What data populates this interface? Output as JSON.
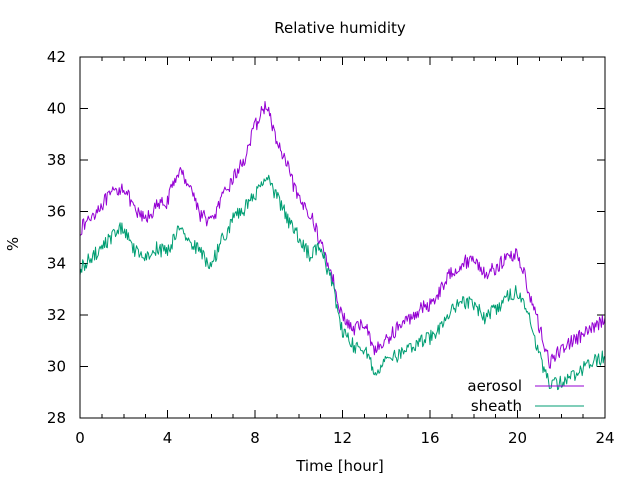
{
  "chart_data": {
    "type": "line",
    "title": "Relative humidity",
    "xlabel": "Time [hour]",
    "ylabel": "%",
    "xlim": [
      0,
      24
    ],
    "ylim": [
      28,
      42
    ],
    "xticks": [
      0,
      4,
      8,
      12,
      16,
      20,
      24
    ],
    "yticks": [
      28,
      30,
      32,
      34,
      36,
      38,
      40,
      42
    ],
    "xtick_labels": [
      "0",
      "4",
      "8",
      "12",
      "16",
      "20",
      "24"
    ],
    "ytick_labels": [
      "28",
      "30",
      "32",
      "34",
      "36",
      "38",
      "40",
      "42"
    ],
    "grid": false,
    "legend_position": "bottom-right",
    "series": [
      {
        "name": "aerosol",
        "color": "#9400d3",
        "x": [
          0,
          0.5,
          1,
          1.5,
          2,
          2.5,
          3,
          3.5,
          4,
          4.5,
          5,
          5.5,
          6,
          6.5,
          7,
          7.5,
          8,
          8.5,
          9,
          9.5,
          10,
          10.5,
          11,
          11.5,
          12,
          12.5,
          13,
          13.5,
          14,
          14.5,
          15,
          15.5,
          16,
          16.5,
          17,
          17.5,
          18,
          18.5,
          19,
          19.5,
          20,
          20.5,
          21,
          21.5,
          22,
          22.5,
          23,
          23.5,
          24
        ],
        "y": [
          35.3,
          35.8,
          36.3,
          36.7,
          37.0,
          36.0,
          35.7,
          36.2,
          36.4,
          37.6,
          37.1,
          35.9,
          35.6,
          36.5,
          37.3,
          38.0,
          39.3,
          40.2,
          38.7,
          37.7,
          36.4,
          36.0,
          34.8,
          33.6,
          31.9,
          31.4,
          31.7,
          30.6,
          31.0,
          31.5,
          31.8,
          32.2,
          32.4,
          33.0,
          33.7,
          34.0,
          34.2,
          33.6,
          33.8,
          34.2,
          34.4,
          33.0,
          31.5,
          30.1,
          30.7,
          31.0,
          31.2,
          31.5,
          31.9
        ]
      },
      {
        "name": "sheath",
        "color": "#009e73",
        "x": [
          0,
          0.5,
          1,
          1.5,
          2,
          2.5,
          3,
          3.5,
          4,
          4.5,
          5,
          5.5,
          6,
          6.5,
          7,
          7.5,
          8,
          8.5,
          9,
          9.5,
          10,
          10.5,
          11,
          11.5,
          12,
          12.5,
          13,
          13.5,
          14,
          14.5,
          15,
          15.5,
          16,
          16.5,
          17,
          17.5,
          18,
          18.5,
          19,
          19.5,
          20,
          20.5,
          21,
          21.5,
          22,
          22.5,
          23,
          23.5,
          24
        ],
        "y": [
          33.8,
          34.2,
          34.6,
          35.1,
          35.4,
          34.5,
          34.3,
          34.6,
          34.4,
          35.3,
          34.9,
          34.4,
          33.9,
          34.9,
          35.7,
          36.1,
          36.6,
          37.4,
          36.6,
          35.7,
          35.0,
          34.3,
          34.6,
          33.3,
          31.3,
          30.8,
          30.7,
          29.8,
          30.2,
          30.4,
          30.6,
          30.9,
          31.1,
          31.6,
          32.2,
          32.5,
          32.4,
          31.9,
          32.2,
          32.7,
          32.9,
          32.0,
          30.4,
          29.3,
          29.4,
          29.6,
          29.9,
          30.2,
          30.4
        ]
      }
    ]
  }
}
